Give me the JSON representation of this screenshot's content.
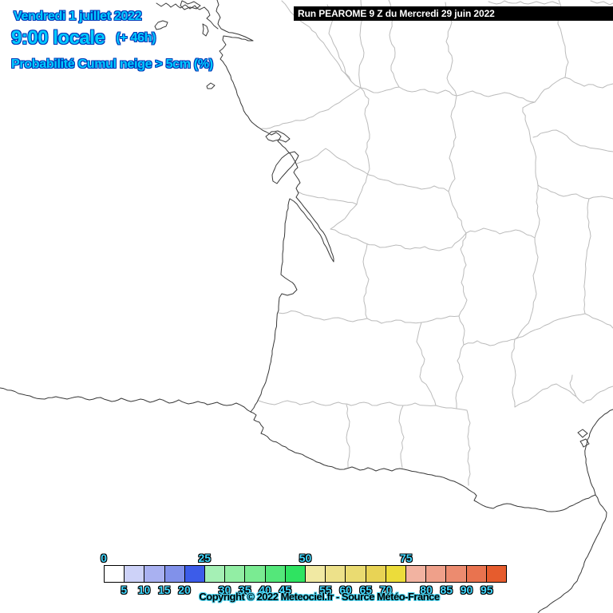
{
  "header": {
    "date_line": "Vendredi 1 juillet 2022",
    "time_line": "9:00 locale",
    "offset_label": "(+ 46h)",
    "subtitle": "Probabilité Cumul neige > 5cm (%)"
  },
  "run_banner": {
    "label": "Run PEAROME 9 Z du Mercredi 29 juin 2022"
  },
  "legend": {
    "unit": "%",
    "colors": [
      "#FFFFFF",
      "#CDD2F8",
      "#A9B1F1",
      "#8191EA",
      "#3C5CE9",
      "#A5F0B5",
      "#92EEA4",
      "#7AEB92",
      "#54E77A",
      "#2FE361",
      "#F1E9A3",
      "#EDE18A",
      "#EADB71",
      "#E8D355",
      "#ECDC3A",
      "#F2B3A1",
      "#EFA08A",
      "#EC8B6F",
      "#E9734F",
      "#E65C2D"
    ],
    "top_labels": [
      {
        "text": "0",
        "boundary": 0
      },
      {
        "text": "25",
        "boundary": 5
      },
      {
        "text": "50",
        "boundary": 10
      },
      {
        "text": "75",
        "boundary": 15
      }
    ],
    "bottom_labels": [
      {
        "text": "5",
        "boundary": 1
      },
      {
        "text": "10",
        "boundary": 2
      },
      {
        "text": "15",
        "boundary": 3
      },
      {
        "text": "20",
        "boundary": 4
      },
      {
        "text": "30",
        "boundary": 6
      },
      {
        "text": "35",
        "boundary": 7
      },
      {
        "text": "40",
        "boundary": 8
      },
      {
        "text": "45",
        "boundary": 9
      },
      {
        "text": "55",
        "boundary": 11
      },
      {
        "text": "60",
        "boundary": 12
      },
      {
        "text": "65",
        "boundary": 13
      },
      {
        "text": "70",
        "boundary": 14
      },
      {
        "text": "80",
        "boundary": 16
      },
      {
        "text": "85",
        "boundary": 17
      },
      {
        "text": "90",
        "boundary": 18
      },
      {
        "text": "95",
        "boundary": 19
      }
    ]
  },
  "footer": {
    "copyright": "Copyright © 2022 Meteociel.fr - Source Météo-France"
  },
  "colors": {
    "background": "#FFFFFF",
    "header_text": "#00CCFF",
    "header_outline": "#0038B8",
    "banner_bg": "#000000",
    "banner_fg": "#FFFFFF",
    "tick_text": "#40D8FF",
    "copyright_text": "#000000",
    "copyright_outline": "#4FD6F2",
    "coastline": "#383838",
    "department": "#BBBBBB"
  }
}
